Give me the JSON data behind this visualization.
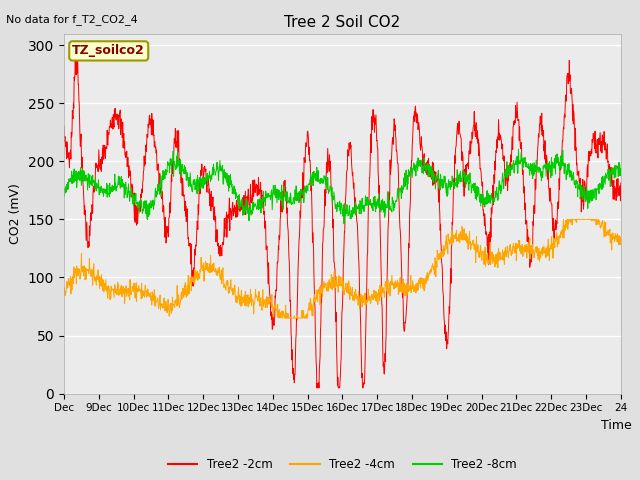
{
  "title": "Tree 2 Soil CO2",
  "no_data_text": "No data for f_T2_CO2_4",
  "ylabel": "CO2 (mV)",
  "xlabel": "Time",
  "legend_label": "TZ_soilco2",
  "series_labels": [
    "Tree2 -2cm",
    "Tree2 -4cm",
    "Tree2 -8cm"
  ],
  "series_colors": [
    "#ff0000",
    "#ffa500",
    "#00cc00"
  ],
  "ylim": [
    0,
    310
  ],
  "yticks": [
    0,
    50,
    100,
    150,
    200,
    250,
    300
  ],
  "xtick_labels": [
    "Dec",
    "9Dec",
    "10Dec",
    "11Dec",
    "12Dec",
    "13Dec",
    "14Dec",
    "15Dec",
    "16Dec",
    "17Dec",
    "18Dec",
    "19Dec",
    "20Dec",
    "21Dec",
    "22Dec",
    "23Dec",
    "24"
  ],
  "background_color": "#e0e0e0",
  "plot_bg_color": "#ebebeb",
  "legend_box_color": "#ffffcc",
  "legend_box_edge": "#999900"
}
